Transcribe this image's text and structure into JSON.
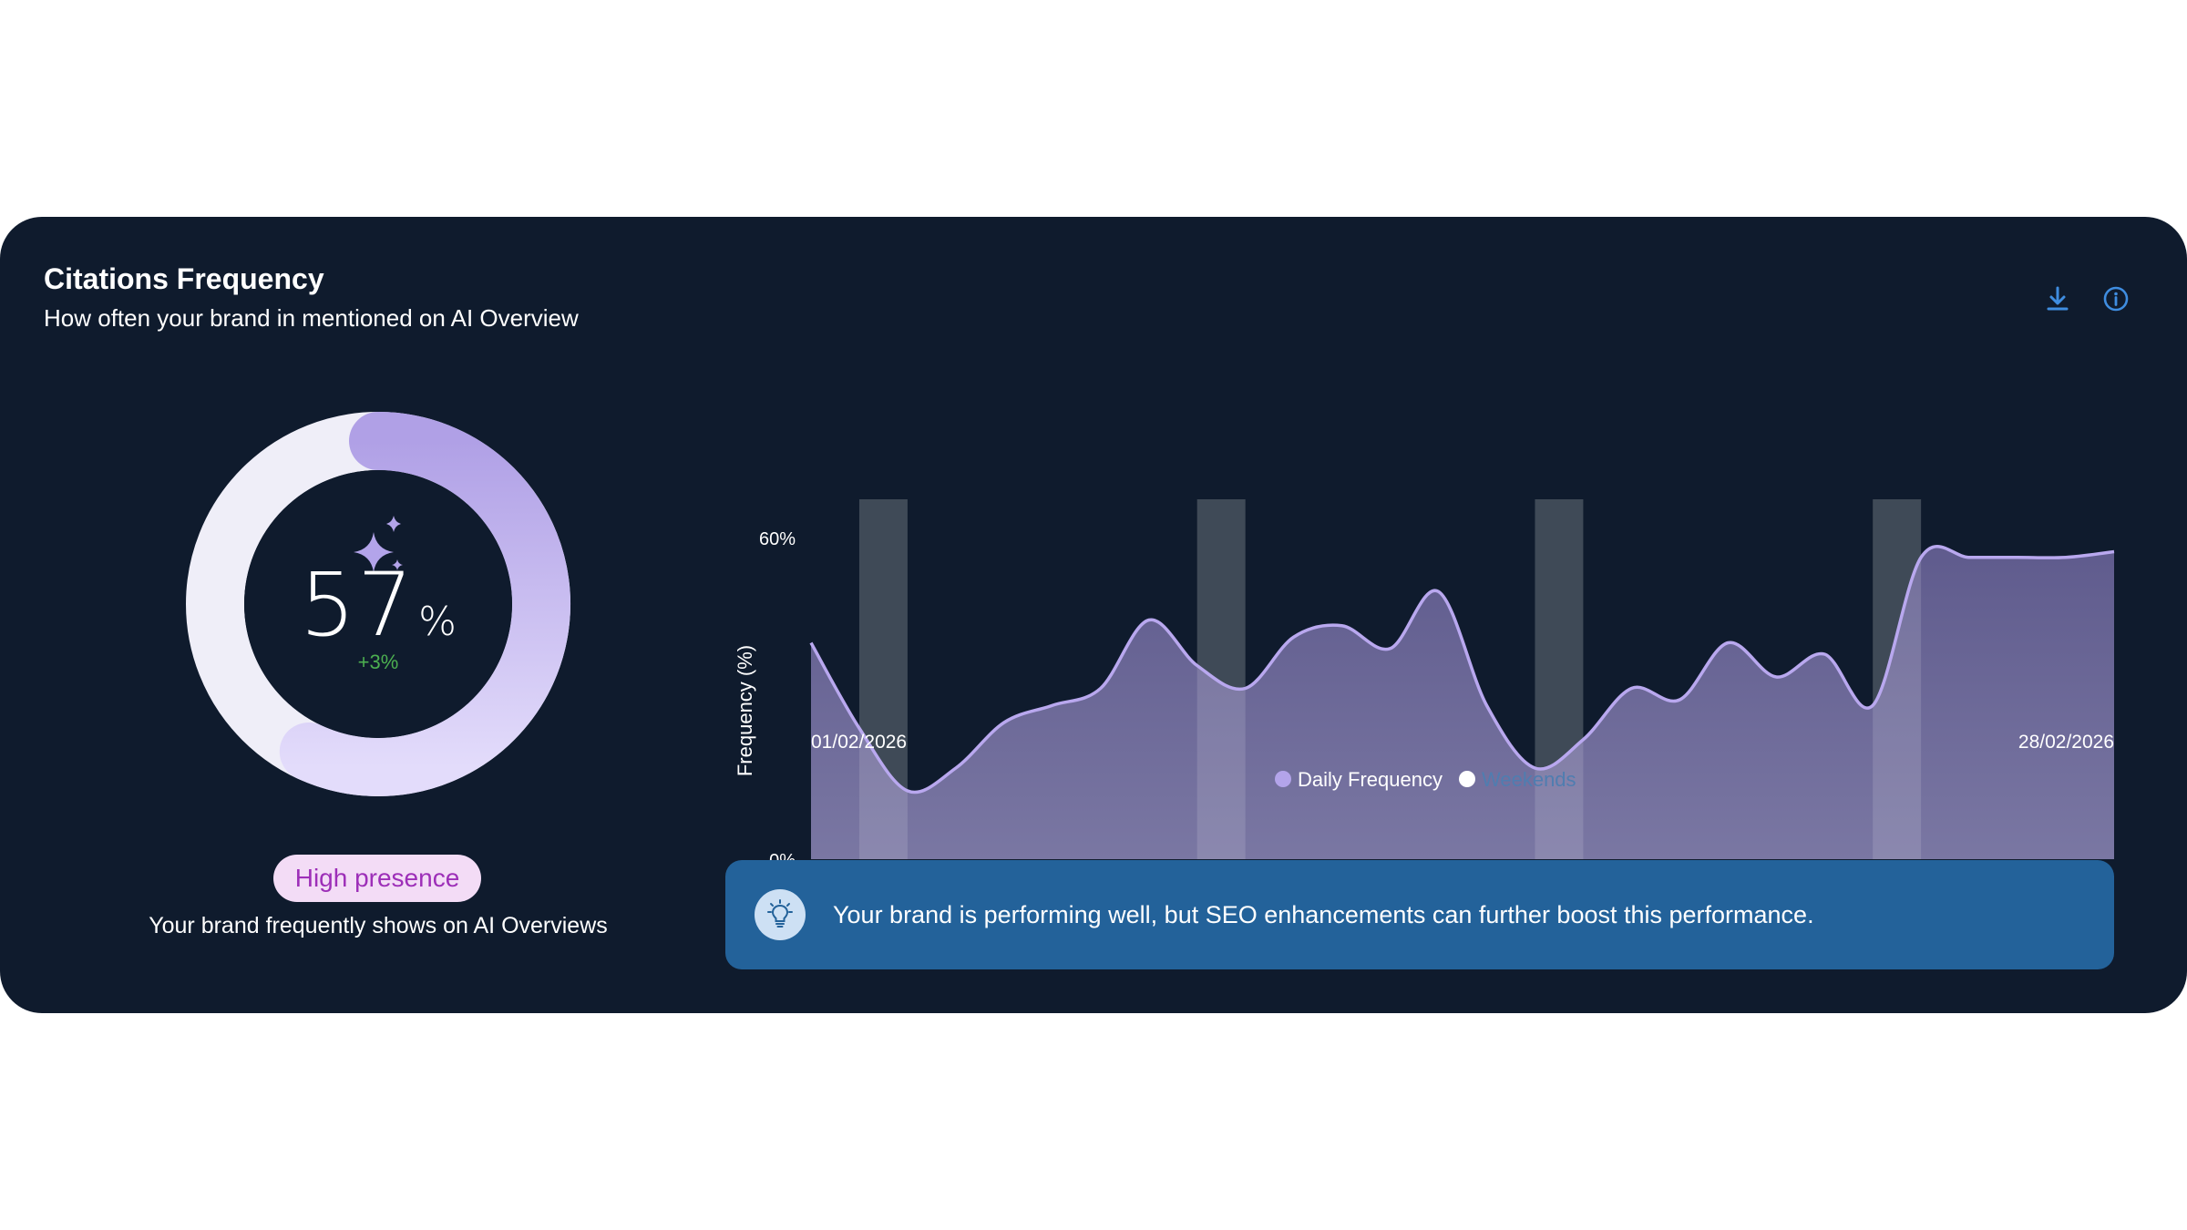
{
  "card": {
    "title": "Citations Frequency",
    "subtitle": "How often your brand in mentioned on AI Overview",
    "download_icon": "download-icon",
    "info_icon": "info-icon"
  },
  "summary": {
    "value": "57",
    "unit": "%",
    "delta": "+3%",
    "gauge_fraction": 0.57,
    "sparkle_icon": "sparkles-icon",
    "badge": "High presence",
    "description": "Your brand frequently shows on AI Overviews"
  },
  "insight": {
    "icon": "lightbulb-icon",
    "text": "Your brand is performing well, but SEO enhancements can further boost this performance."
  },
  "colors": {
    "card_bg": "#0f1b2d",
    "accent_purple": "#b3a4ea",
    "gauge_track": "#efeef8",
    "delta_green": "#4caf50",
    "badge_bg": "#f3dcf6",
    "badge_text": "#9d2fb8",
    "insight_bg": "#23629a",
    "icon_blue": "#3f8de0"
  },
  "chart_data": {
    "type": "area",
    "ylabel": "Frequency (%)",
    "ylim": [
      0,
      60
    ],
    "y_tick_labels": [
      "0%",
      "60%"
    ],
    "x_start_label": "01/02/2026",
    "x_end_label": "28/02/2026",
    "x": [
      "01/02/2026",
      "02/02/2026",
      "03/02/2026",
      "04/02/2026",
      "05/02/2026",
      "06/02/2026",
      "07/02/2026",
      "08/02/2026",
      "09/02/2026",
      "10/02/2026",
      "11/02/2026",
      "12/02/2026",
      "13/02/2026",
      "14/02/2026",
      "15/02/2026",
      "16/02/2026",
      "17/02/2026",
      "18/02/2026",
      "19/02/2026",
      "20/02/2026",
      "21/02/2026",
      "22/02/2026",
      "23/02/2026",
      "24/02/2026",
      "25/02/2026",
      "26/02/2026",
      "27/02/2026",
      "28/02/2026"
    ],
    "series": [
      {
        "name": "Daily Frequency",
        "values": [
          38,
          23,
          12,
          16,
          24,
          27,
          30,
          42,
          34,
          30,
          39,
          41,
          37,
          47,
          27,
          16,
          21,
          30,
          28,
          38,
          32,
          36,
          27,
          53,
          53,
          53,
          53,
          54
        ]
      }
    ],
    "weekend_bands": [
      [
        "02/02/2026",
        "03/02/2026"
      ],
      [
        "09/02/2026",
        "10/02/2026"
      ],
      [
        "16/02/2026",
        "17/02/2026"
      ],
      [
        "23/02/2026",
        "24/02/2026"
      ]
    ],
    "legend": [
      "Daily Frequency",
      "Weekends"
    ],
    "legend_position": "bottom-center",
    "grid": false
  }
}
